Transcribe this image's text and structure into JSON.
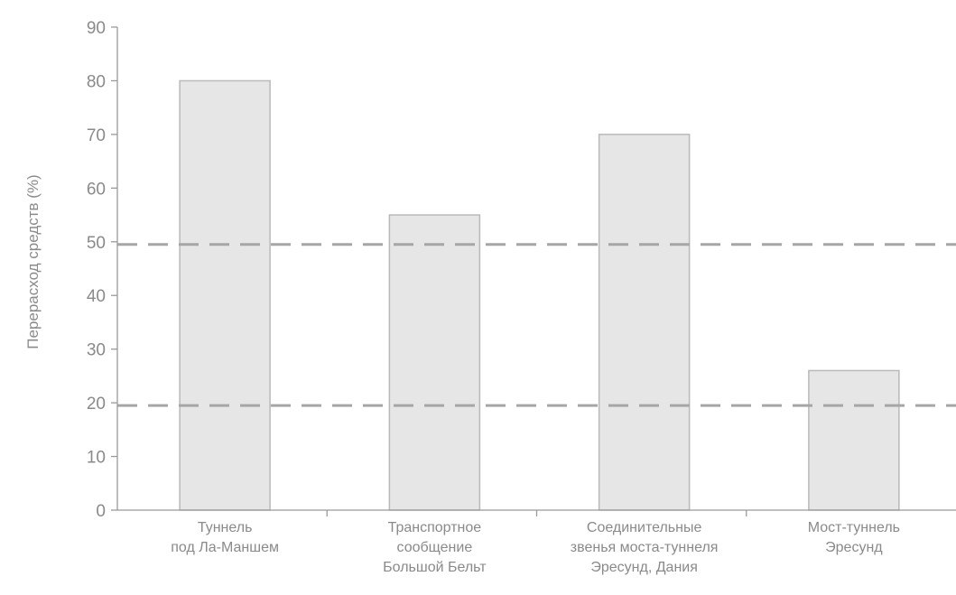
{
  "chart_data": {
    "type": "bar",
    "title": "",
    "xlabel": "",
    "ylabel": "Перерасход средств (%)",
    "ylim": [
      0,
      90
    ],
    "yticks": [
      0,
      10,
      20,
      30,
      40,
      50,
      60,
      70,
      80,
      90
    ],
    "categories": [
      [
        "Туннель",
        "под Ла-Маншем"
      ],
      [
        "Транспортное",
        "сообщение",
        "Большой Бельт"
      ],
      [
        "Соединительные",
        "звенья моста-туннеля",
        "Эресунд, Дания"
      ],
      [
        "Мост-туннель",
        "Эресунд"
      ]
    ],
    "values": [
      80,
      55,
      70,
      26
    ],
    "reference_lines": [
      49.5,
      19.5
    ],
    "grid": false,
    "legend": "none",
    "colors": {
      "bar_fill": "#e6e6e6",
      "bar_stroke": "#b9b9b9",
      "axis": "#9a9a9a",
      "text": "#8a8a8a",
      "reference_line": "#a6a6a6"
    }
  }
}
